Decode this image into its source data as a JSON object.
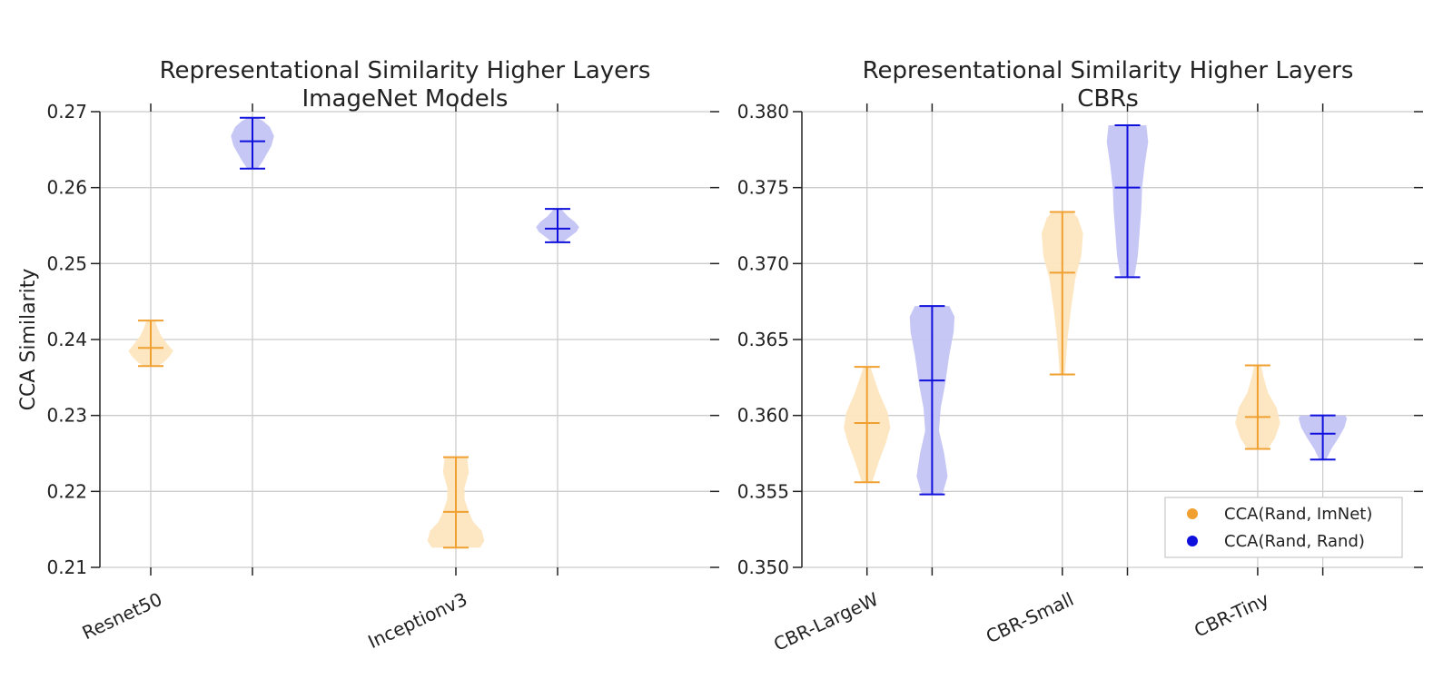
{
  "colors": {
    "imnet": "#f0a030",
    "imnet_fill": "#fde6c0",
    "rand": "#1010dd",
    "rand_fill": "#c4c4f6",
    "grid": "#cccccc",
    "axis": "#222222"
  },
  "legend": {
    "items": [
      {
        "label": "CCA(Rand, ImNet)",
        "color": "#f0a030"
      },
      {
        "label": "CCA(Rand, Rand)",
        "color": "#1010dd"
      }
    ],
    "placement": "lower-right"
  },
  "chart_data": [
    {
      "type": "violin",
      "title": "Representational Similarity Higher Layers\nImageNet Models",
      "title_lines": [
        "Representational Similarity Higher Layers",
        "ImageNet Models"
      ],
      "xlabel": "",
      "ylabel": "CCA Similarity",
      "ylim": [
        0.21,
        0.27
      ],
      "yticks": [
        0.21,
        0.22,
        0.23,
        0.24,
        0.25,
        0.26,
        0.27
      ],
      "ytick_labels": [
        "0.21",
        "0.22",
        "0.23",
        "0.24",
        "0.25",
        "0.26",
        "0.27"
      ],
      "xlim": [
        0.5,
        6.5
      ],
      "xticks": [
        1,
        2,
        4,
        5
      ],
      "category_positions": [
        1,
        4
      ],
      "categories": [
        "Resnet50",
        "Inceptionv3"
      ],
      "series": [
        {
          "name": "CCA(Rand, ImNet)",
          "violins": [
            {
              "category": "Resnet50",
              "x": 1,
              "min": 0.2365,
              "median": 0.2389,
              "max": 0.2425,
              "profile": [
                [
                  0.2365,
                  0.08
                ],
                [
                  0.237,
                  0.15
                ],
                [
                  0.2378,
                  0.22
                ],
                [
                  0.2385,
                  0.26
                ],
                [
                  0.2393,
                  0.2
                ],
                [
                  0.2405,
                  0.12
                ],
                [
                  0.2415,
                  0.08
                ],
                [
                  0.2425,
                  0.05
                ]
              ]
            },
            {
              "category": "Inceptionv3",
              "x": 4,
              "min": 0.2126,
              "median": 0.2173,
              "max": 0.2245,
              "profile": [
                [
                  0.2126,
                  0.28
                ],
                [
                  0.2135,
                  0.33
                ],
                [
                  0.2148,
                  0.3
                ],
                [
                  0.216,
                  0.2
                ],
                [
                  0.2173,
                  0.15
                ],
                [
                  0.219,
                  0.1
                ],
                [
                  0.2205,
                  0.1
                ],
                [
                  0.2225,
                  0.15
                ],
                [
                  0.2245,
                  0.13
                ]
              ]
            }
          ]
        },
        {
          "name": "CCA(Rand, Rand)",
          "violins": [
            {
              "category": "Resnet50",
              "x": 2,
              "min": 0.2625,
              "median": 0.2661,
              "max": 0.2692,
              "profile": [
                [
                  0.2625,
                  0.06
                ],
                [
                  0.2635,
                  0.12
                ],
                [
                  0.2645,
                  0.17
                ],
                [
                  0.2655,
                  0.22
                ],
                [
                  0.2668,
                  0.25
                ],
                [
                  0.268,
                  0.2
                ],
                [
                  0.2688,
                  0.12
                ],
                [
                  0.2692,
                  0.05
                ]
              ]
            },
            {
              "category": "Inceptionv3",
              "x": 5,
              "min": 0.2528,
              "median": 0.2546,
              "max": 0.2572,
              "profile": [
                [
                  0.2528,
                  0.06
                ],
                [
                  0.2535,
                  0.14
                ],
                [
                  0.2542,
                  0.22
                ],
                [
                  0.2548,
                  0.25
                ],
                [
                  0.2555,
                  0.2
                ],
                [
                  0.2562,
                  0.12
                ],
                [
                  0.2572,
                  0.04
                ]
              ]
            }
          ]
        }
      ]
    },
    {
      "type": "violin",
      "title": "Representational Similarity Higher Layers\nCBRs",
      "title_lines": [
        "Representational Similarity Higher Layers",
        "CBRs"
      ],
      "xlabel": "",
      "ylabel": "",
      "ylim": [
        0.35,
        0.38
      ],
      "yticks": [
        0.35,
        0.355,
        0.36,
        0.365,
        0.37,
        0.375,
        0.38
      ],
      "ytick_labels": [
        "0.350",
        "0.355",
        "0.360",
        "0.365",
        "0.370",
        "0.375",
        "0.380"
      ],
      "xlim": [
        0,
        9.4
      ],
      "xticks": [
        1,
        2,
        4,
        5,
        7,
        8
      ],
      "category_positions": [
        1,
        4,
        7
      ],
      "categories": [
        "CBR-LargeW",
        "CBR-Small",
        "CBR-Tiny"
      ],
      "series": [
        {
          "name": "CCA(Rand, ImNet)",
          "violins": [
            {
              "category": "CBR-LargeW",
              "x": 1,
              "min": 0.3556,
              "median": 0.3595,
              "max": 0.3632,
              "profile": [
                [
                  0.3556,
                  0.06
                ],
                [
                  0.357,
                  0.14
                ],
                [
                  0.3582,
                  0.22
                ],
                [
                  0.3592,
                  0.27
                ],
                [
                  0.3602,
                  0.24
                ],
                [
                  0.3615,
                  0.14
                ],
                [
                  0.3625,
                  0.08
                ],
                [
                  0.3632,
                  0.04
                ]
              ]
            },
            {
              "category": "CBR-Small",
              "x": 4,
              "min": 0.3627,
              "median": 0.3694,
              "max": 0.3734,
              "profile": [
                [
                  0.3627,
                  0.03
                ],
                [
                  0.365,
                  0.06
                ],
                [
                  0.367,
                  0.1
                ],
                [
                  0.369,
                  0.15
                ],
                [
                  0.3705,
                  0.22
                ],
                [
                  0.372,
                  0.24
                ],
                [
                  0.373,
                  0.18
                ],
                [
                  0.3734,
                  0.12
                ]
              ]
            },
            {
              "category": "CBR-Tiny",
              "x": 7,
              "min": 0.3578,
              "median": 0.3599,
              "max": 0.3633,
              "profile": [
                [
                  0.3578,
                  0.12
                ],
                [
                  0.3585,
                  0.2
                ],
                [
                  0.3595,
                  0.26
                ],
                [
                  0.3605,
                  0.22
                ],
                [
                  0.3615,
                  0.12
                ],
                [
                  0.3625,
                  0.07
                ],
                [
                  0.3633,
                  0.04
                ]
              ]
            }
          ]
        },
        {
          "name": "CCA(Rand, Rand)",
          "violins": [
            {
              "category": "CBR-LargeW",
              "x": 2,
              "min": 0.3548,
              "median": 0.3623,
              "max": 0.3672,
              "profile": [
                [
                  0.3548,
                  0.12
                ],
                [
                  0.356,
                  0.18
                ],
                [
                  0.3575,
                  0.14
                ],
                [
                  0.359,
                  0.08
                ],
                [
                  0.3605,
                  0.1
                ],
                [
                  0.362,
                  0.15
                ],
                [
                  0.364,
                  0.2
                ],
                [
                  0.3655,
                  0.25
                ],
                [
                  0.3665,
                  0.26
                ],
                [
                  0.3672,
                  0.2
                ]
              ]
            },
            {
              "category": "CBR-Small",
              "x": 5,
              "min": 0.3691,
              "median": 0.375,
              "max": 0.3791,
              "profile": [
                [
                  0.3691,
                  0.08
                ],
                [
                  0.3705,
                  0.12
                ],
                [
                  0.372,
                  0.14
                ],
                [
                  0.3735,
                  0.16
                ],
                [
                  0.375,
                  0.17
                ],
                [
                  0.3765,
                  0.2
                ],
                [
                  0.378,
                  0.24
                ],
                [
                  0.3791,
                  0.22
                ]
              ]
            },
            {
              "category": "CBR-Tiny",
              "x": 8,
              "min": 0.3571,
              "median": 0.3588,
              "max": 0.36,
              "profile": [
                [
                  0.3571,
                  0.04
                ],
                [
                  0.3578,
                  0.1
                ],
                [
                  0.3585,
                  0.18
                ],
                [
                  0.3592,
                  0.25
                ],
                [
                  0.3598,
                  0.28
                ],
                [
                  0.36,
                  0.26
                ]
              ]
            }
          ]
        }
      ]
    }
  ]
}
